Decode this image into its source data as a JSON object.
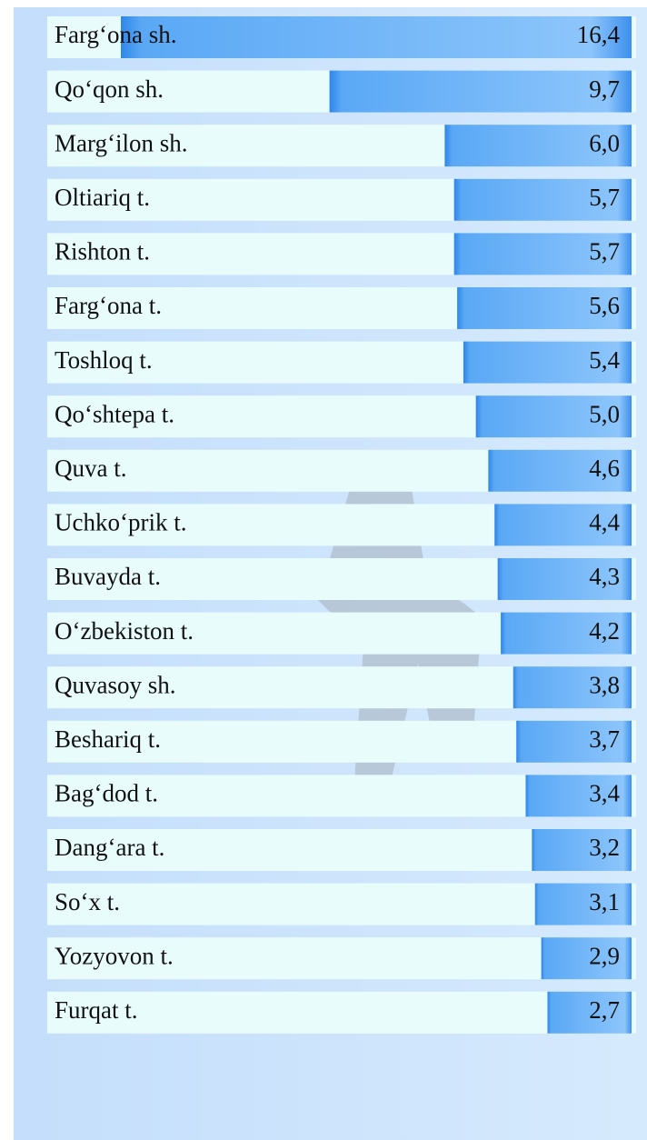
{
  "chart_data": {
    "type": "bar",
    "categories": [
      "Farg‘ona sh.",
      "Qo‘qon sh.",
      "Marg‘ilon sh.",
      "Oltiariq t.",
      "Rishton t.",
      "Farg‘ona t.",
      "Toshloq t.",
      "Qo‘shtepa t.",
      "Quva t.",
      "Uchko‘prik t.",
      "Buvayda t.",
      "O‘zbekiston t.",
      "Quvasoy sh.",
      "Beshariq t.",
      "Bag‘dod t.",
      "Dang‘ara t.",
      "So‘x t.",
      "Yozyovon t.",
      "Furqat t."
    ],
    "values": [
      16.4,
      9.7,
      6.0,
      5.7,
      5.7,
      5.6,
      5.4,
      5.0,
      4.6,
      4.4,
      4.3,
      4.2,
      3.8,
      3.7,
      3.4,
      3.2,
      3.1,
      2.9,
      2.7
    ],
    "value_labels": [
      "16,4",
      "9,7",
      "6,0",
      "5,7",
      "5,7",
      "5,6",
      "5,4",
      "5,0",
      "4,6",
      "4,4",
      "4,3",
      "4,2",
      "3,8",
      "3,7",
      "3,4",
      "3,2",
      "3,1",
      "2,9",
      "2,7"
    ],
    "color": "#5aa8f5"
  }
}
